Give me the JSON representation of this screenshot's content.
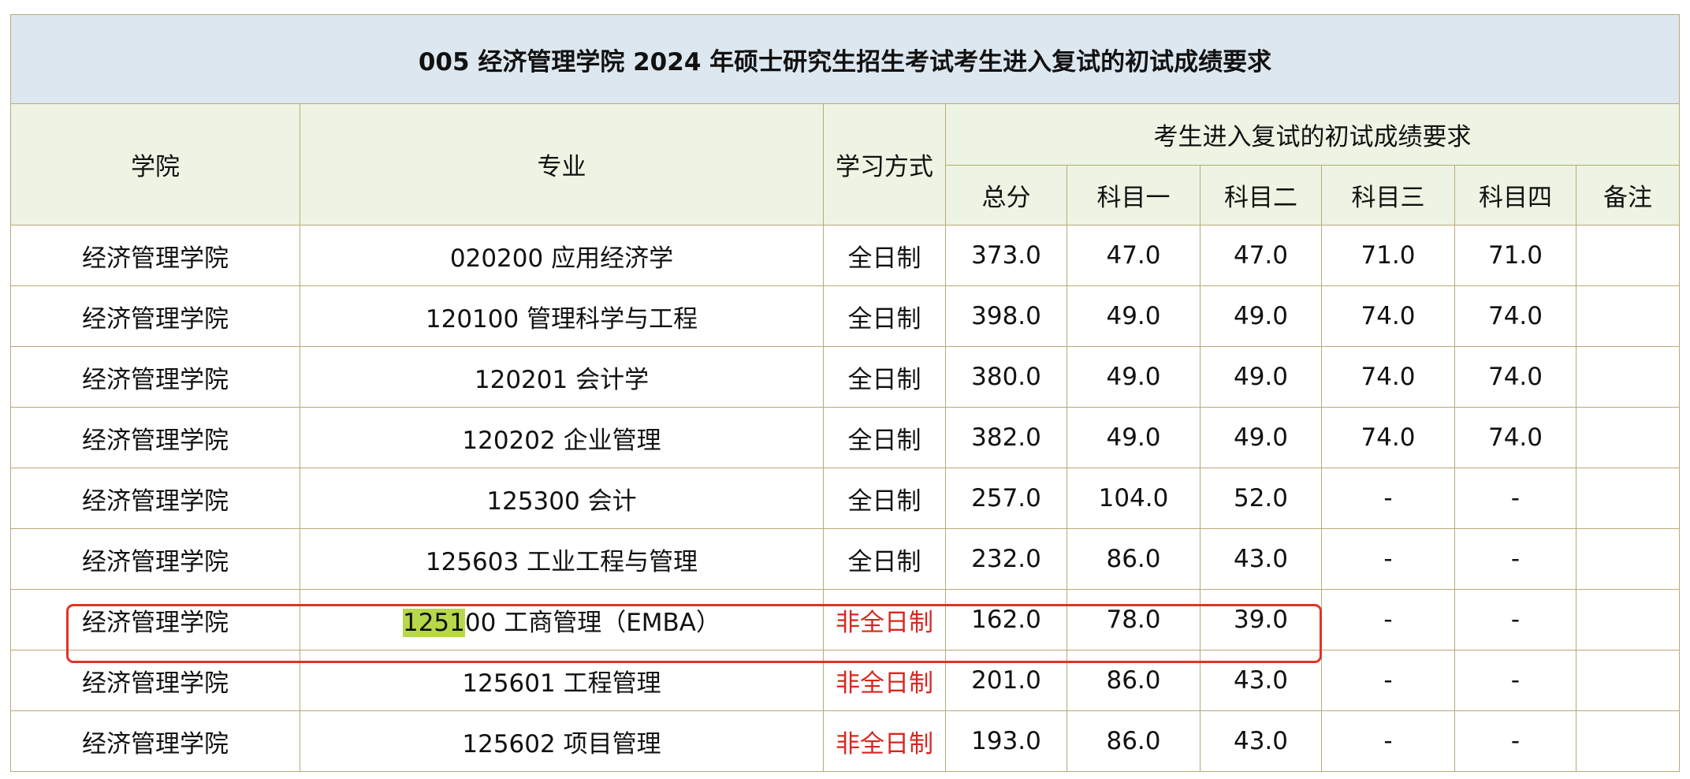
{
  "title": "005 经济管理学院 2024 年硕士研究生招生考试考生进入复试的初试成绩要求",
  "headers": {
    "college": "学院",
    "major": "专业",
    "mode": "学习方式",
    "group": "考生进入复试的初试成绩要求",
    "total": "总分",
    "sub1": "科目一",
    "sub2": "科目二",
    "sub3": "科目三",
    "sub4": "科目四",
    "remark": "备注"
  },
  "rows": [
    {
      "college": "经济管理学院",
      "major_code": "020200",
      "major_name": " 应用经济学",
      "mode": "全日制",
      "mode_red": false,
      "total": "373.0",
      "s1": "47.0",
      "s2": "47.0",
      "s3": "71.0",
      "s4": "71.0",
      "remark": ""
    },
    {
      "college": "经济管理学院",
      "major_code": "120100",
      "major_name": " 管理科学与工程",
      "mode": "全日制",
      "mode_red": false,
      "total": "398.0",
      "s1": "49.0",
      "s2": "49.0",
      "s3": "74.0",
      "s4": "74.0",
      "remark": ""
    },
    {
      "college": "经济管理学院",
      "major_code": "120201",
      "major_name": " 会计学",
      "mode": "全日制",
      "mode_red": false,
      "total": "380.0",
      "s1": "49.0",
      "s2": "49.0",
      "s3": "74.0",
      "s4": "74.0",
      "remark": ""
    },
    {
      "college": "经济管理学院",
      "major_code": "120202",
      "major_name": " 企业管理",
      "mode": "全日制",
      "mode_red": false,
      "total": "382.0",
      "s1": "49.0",
      "s2": "49.0",
      "s3": "74.0",
      "s4": "74.0",
      "remark": ""
    },
    {
      "college": "经济管理学院",
      "major_code": "125300",
      "major_name": " 会计",
      "mode": "全日制",
      "mode_red": false,
      "total": "257.0",
      "s1": "104.0",
      "s2": "52.0",
      "s3": "-",
      "s4": "-",
      "remark": ""
    },
    {
      "college": "经济管理学院",
      "major_code": "125603",
      "major_name": " 工业工程与管理",
      "mode": "全日制",
      "mode_red": false,
      "total": "232.0",
      "s1": "86.0",
      "s2": "43.0",
      "s3": "-",
      "s4": "-",
      "remark": ""
    },
    {
      "college": "经济管理学院",
      "major_code_hl": "1251",
      "major_code": "00",
      "major_name": " 工商管理（EMBA）",
      "mode": "非全日制",
      "mode_red": true,
      "total": "162.0",
      "s1": "78.0",
      "s2": "39.0",
      "s3": "-",
      "s4": "-",
      "remark": ""
    },
    {
      "college": "经济管理学院",
      "major_code": "125601",
      "major_name": " 工程管理",
      "mode": "非全日制",
      "mode_red": true,
      "total": "201.0",
      "s1": "86.0",
      "s2": "43.0",
      "s3": "-",
      "s4": "-",
      "remark": ""
    },
    {
      "college": "经济管理学院",
      "major_code": "125602",
      "major_name": " 项目管理",
      "mode": "非全日制",
      "mode_red": true,
      "total": "193.0",
      "s1": "86.0",
      "s2": "43.0",
      "s3": "-",
      "s4": "-",
      "remark": ""
    }
  ],
  "colors": {
    "title_bg": "#dde7ef",
    "header_bg": "#edf4e3",
    "border": "#b8a97a",
    "red_text": "#d8261f",
    "highlight": "#b6d84a",
    "box": "#e03425"
  }
}
